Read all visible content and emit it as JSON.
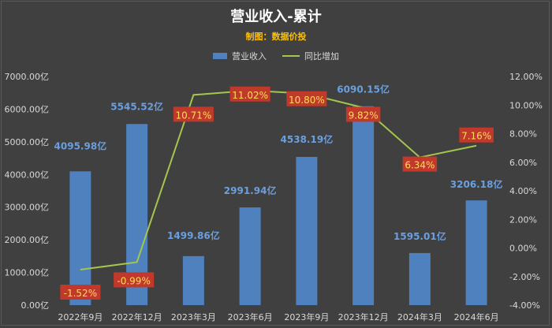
{
  "title": "营业收入-累计",
  "subtitle": "制图：数据价投",
  "legend": {
    "bar": "营业收入",
    "line": "同比增加"
  },
  "colors": {
    "bar": "#4e81bd",
    "line": "#a4c64d",
    "bar_label": "#6a9fe0",
    "pct_label_bg": "#c0392b",
    "pct_label_text": "#ffde59"
  },
  "chart_data": {
    "type": "bar+line",
    "categories": [
      "2022年9月",
      "2022年12月",
      "2023年3月",
      "2023年6月",
      "2023年9月",
      "2023年12月",
      "2024年3月",
      "2024年6月"
    ],
    "series": [
      {
        "name": "营业收入",
        "type": "bar",
        "axis": "left",
        "values": [
          4095.98,
          5545.52,
          1499.86,
          2991.94,
          4538.19,
          6090.15,
          1595.01,
          3206.18
        ]
      },
      {
        "name": "同比增加",
        "type": "line",
        "axis": "right",
        "values": [
          -1.52,
          -0.99,
          10.71,
          11.02,
          10.8,
          9.82,
          6.34,
          7.16
        ]
      }
    ],
    "bar_labels": [
      "4095.98亿",
      "5545.52亿",
      "1499.86亿",
      "2991.94亿",
      "4538.19亿",
      "6090.15亿",
      "1595.01亿",
      "3206.18亿"
    ],
    "line_labels": [
      "-1.52%",
      "-0.99%",
      "10.71%",
      "11.02%",
      "10.80%",
      "9.82%",
      "6.34%",
      "7.16%"
    ],
    "left_axis": {
      "ylim": [
        0,
        7000
      ],
      "ticks": [
        "0.00亿",
        "1000.00亿",
        "2000.00亿",
        "3000.00亿",
        "4000.00亿",
        "5000.00亿",
        "6000.00亿",
        "7000.00亿"
      ]
    },
    "right_axis": {
      "ylim": [
        -4,
        12
      ],
      "ticks": [
        "-4.00%",
        "-2.00%",
        "0.00%",
        "2.00%",
        "4.00%",
        "6.00%",
        "8.00%",
        "10.00%",
        "12.00%"
      ]
    },
    "grid": false,
    "legend_position": "top"
  }
}
